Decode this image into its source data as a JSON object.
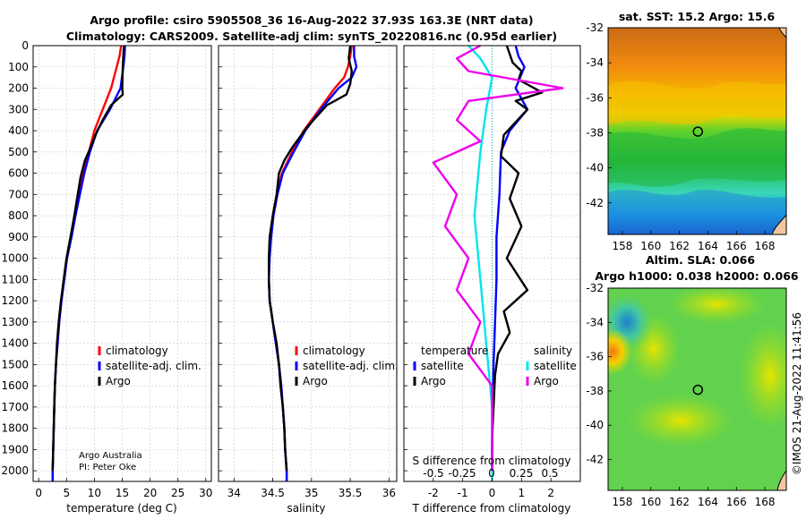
{
  "title_line1": "Argo profile: csiro 5905508_36 16-Aug-2022 37.93S 163.3E (NRT data)",
  "title_line2": "Climatology: CARS2009. Satellite-adj clim: synTS_20220816.nc (0.95d earlier)",
  "credit_line1": "Argo Australia",
  "credit_line2": "PI: Peter Oke",
  "copyright": "©IMOS 21-Aug-2022 11:41:56",
  "colors": {
    "climatology": "#ff0000",
    "satadj": "#0000ff",
    "argo": "#000000",
    "s_satellite": "#00e5ee",
    "s_argo": "#ee00ee"
  },
  "chart_data": [
    {
      "type": "line",
      "id": "temp",
      "xlabel": "temperature (deg C)",
      "xlim": [
        -1,
        31
      ],
      "ylim": [
        0,
        2050
      ],
      "xticks": [
        0,
        5,
        10,
        15,
        20,
        25,
        30
      ],
      "yticks": [
        0,
        100,
        200,
        300,
        400,
        500,
        600,
        700,
        800,
        900,
        1000,
        1100,
        1200,
        1300,
        1400,
        1500,
        1600,
        1700,
        1800,
        1900,
        2000
      ],
      "legend": [
        "climatology",
        "satellite-adj. clim.",
        "Argo"
      ],
      "series": [
        {
          "name": "climatology",
          "color": "#ff0000",
          "points": [
            [
              14.8,
              0
            ],
            [
              14.5,
              50
            ],
            [
              14.0,
              100
            ],
            [
              13.0,
              200
            ],
            [
              11.5,
              300
            ],
            [
              10.0,
              400
            ],
            [
              9.0,
              500
            ],
            [
              8.0,
              600
            ],
            [
              7.2,
              700
            ],
            [
              6.5,
              800
            ],
            [
              5.8,
              900
            ],
            [
              5.0,
              1000
            ],
            [
              4.5,
              1100
            ],
            [
              4.0,
              1200
            ],
            [
              3.6,
              1300
            ],
            [
              3.3,
              1400
            ],
            [
              3.1,
              1500
            ],
            [
              2.9,
              1600
            ],
            [
              2.8,
              1700
            ],
            [
              2.7,
              1800
            ],
            [
              2.6,
              1900
            ],
            [
              2.5,
              2000
            ],
            [
              2.5,
              2050
            ]
          ]
        },
        {
          "name": "satellite-adj. clim.",
          "color": "#0000ff",
          "points": [
            [
              15.5,
              0
            ],
            [
              15.4,
              50
            ],
            [
              15.2,
              100
            ],
            [
              14.7,
              200
            ],
            [
              12.8,
              300
            ],
            [
              10.5,
              400
            ],
            [
              9.2,
              500
            ],
            [
              8.2,
              600
            ],
            [
              7.4,
              700
            ],
            [
              6.6,
              800
            ],
            [
              5.9,
              900
            ],
            [
              5.1,
              1000
            ],
            [
              4.6,
              1100
            ],
            [
              4.1,
              1200
            ],
            [
              3.7,
              1300
            ],
            [
              3.4,
              1400
            ],
            [
              3.1,
              1500
            ],
            [
              2.9,
              1600
            ],
            [
              2.8,
              1700
            ],
            [
              2.7,
              1800
            ],
            [
              2.6,
              1900
            ],
            [
              2.5,
              2000
            ],
            [
              2.5,
              2050
            ]
          ]
        },
        {
          "name": "Argo",
          "color": "#000000",
          "points": [
            [
              15.3,
              0
            ],
            [
              15.2,
              50
            ],
            [
              15.1,
              100
            ],
            [
              15.0,
              200
            ],
            [
              15.1,
              230
            ],
            [
              13.0,
              280
            ],
            [
              11.5,
              350
            ],
            [
              10.2,
              420
            ],
            [
              9.3,
              480
            ],
            [
              8.3,
              540
            ],
            [
              7.5,
              620
            ],
            [
              7.0,
              700
            ],
            [
              6.4,
              800
            ],
            [
              5.7,
              900
            ],
            [
              5.0,
              1000
            ],
            [
              4.5,
              1100
            ],
            [
              4.0,
              1200
            ],
            [
              3.6,
              1300
            ],
            [
              3.3,
              1400
            ],
            [
              3.1,
              1500
            ],
            [
              2.9,
              1600
            ],
            [
              2.8,
              1700
            ],
            [
              2.7,
              1800
            ],
            [
              2.6,
              1900
            ],
            [
              2.5,
              2000
            ]
          ]
        }
      ]
    },
    {
      "type": "line",
      "id": "salt",
      "xlabel": "salinity",
      "xlim": [
        33.8,
        36.1
      ],
      "ylim": [
        0,
        2050
      ],
      "xticks": [
        34,
        34.5,
        35,
        35.5,
        36
      ],
      "yticks": [
        0,
        100,
        200,
        300,
        400,
        500,
        600,
        700,
        800,
        900,
        1000,
        1100,
        1200,
        1300,
        1400,
        1500,
        1600,
        1700,
        1800,
        1900,
        2000
      ],
      "legend": [
        "climatology",
        "satellite-adj. clim.",
        "Argo"
      ],
      "series": [
        {
          "name": "climatology",
          "color": "#ff0000",
          "points": [
            [
              35.52,
              0
            ],
            [
              35.5,
              50
            ],
            [
              35.47,
              100
            ],
            [
              35.42,
              150
            ],
            [
              35.3,
              200
            ],
            [
              35.1,
              300
            ],
            [
              34.9,
              400
            ],
            [
              34.75,
              500
            ],
            [
              34.62,
              600
            ],
            [
              34.55,
              700
            ],
            [
              34.5,
              800
            ],
            [
              34.47,
              900
            ],
            [
              34.45,
              1000
            ],
            [
              34.45,
              1100
            ],
            [
              34.46,
              1200
            ],
            [
              34.5,
              1300
            ],
            [
              34.54,
              1400
            ],
            [
              34.58,
              1500
            ],
            [
              34.61,
              1600
            ],
            [
              34.63,
              1700
            ],
            [
              34.65,
              1800
            ],
            [
              34.66,
              1900
            ],
            [
              34.68,
              2000
            ],
            [
              34.68,
              2050
            ]
          ]
        },
        {
          "name": "satellite-adj. clim.",
          "color": "#0000ff",
          "points": [
            [
              35.55,
              0
            ],
            [
              35.55,
              50
            ],
            [
              35.58,
              100
            ],
            [
              35.52,
              150
            ],
            [
              35.35,
              200
            ],
            [
              35.12,
              300
            ],
            [
              34.92,
              400
            ],
            [
              34.77,
              500
            ],
            [
              34.63,
              600
            ],
            [
              34.56,
              700
            ],
            [
              34.51,
              800
            ],
            [
              34.48,
              900
            ],
            [
              34.46,
              1000
            ],
            [
              34.45,
              1100
            ],
            [
              34.46,
              1200
            ],
            [
              34.5,
              1300
            ],
            [
              34.54,
              1400
            ],
            [
              34.58,
              1500
            ],
            [
              34.61,
              1600
            ],
            [
              34.63,
              1700
            ],
            [
              34.65,
              1800
            ],
            [
              34.66,
              1900
            ],
            [
              34.68,
              2000
            ],
            [
              34.68,
              2050
            ]
          ]
        },
        {
          "name": "Argo",
          "color": "#000000",
          "points": [
            [
              35.5,
              0
            ],
            [
              35.48,
              60
            ],
            [
              35.52,
              120
            ],
            [
              35.5,
              180
            ],
            [
              35.45,
              230
            ],
            [
              35.2,
              280
            ],
            [
              34.95,
              380
            ],
            [
              34.75,
              480
            ],
            [
              34.65,
              540
            ],
            [
              34.58,
              600
            ],
            [
              34.55,
              700
            ],
            [
              34.5,
              800
            ],
            [
              34.46,
              900
            ],
            [
              34.45,
              1000
            ],
            [
              34.45,
              1100
            ],
            [
              34.46,
              1200
            ],
            [
              34.5,
              1300
            ],
            [
              34.55,
              1400
            ],
            [
              34.58,
              1500
            ],
            [
              34.6,
              1600
            ],
            [
              34.63,
              1700
            ],
            [
              34.65,
              1800
            ],
            [
              34.66,
              1900
            ],
            [
              34.68,
              2000
            ]
          ]
        }
      ]
    },
    {
      "type": "line",
      "id": "diff",
      "xlabel": "T difference from climatology",
      "s_label": "S difference from climatology",
      "xlim": [
        -3,
        3
      ],
      "ylim": [
        0,
        2050
      ],
      "xticks": [
        -2,
        -1,
        0,
        1,
        2
      ],
      "s_ticks": [
        "-0.5",
        "-0.25",
        "0",
        "0.25",
        "0.5"
      ],
      "yticks": [
        0,
        100,
        200,
        300,
        400,
        500,
        600,
        700,
        800,
        900,
        1000,
        1100,
        1200,
        1300,
        1400,
        1500,
        1600,
        1700,
        1800,
        1900,
        2000
      ],
      "legend_temperature_title": "temperature",
      "legend_salinity_title": "salinity",
      "legend_entries": [
        "satellite",
        "Argo"
      ],
      "series": [
        {
          "name": "T satellite",
          "color": "#0000ff",
          "points": [
            [
              0.8,
              0
            ],
            [
              0.9,
              50
            ],
            [
              1.1,
              100
            ],
            [
              0.8,
              200
            ],
            [
              1.2,
              300
            ],
            [
              0.6,
              400
            ],
            [
              0.3,
              500
            ],
            [
              0.25,
              700
            ],
            [
              0.15,
              900
            ],
            [
              0.15,
              1100
            ],
            [
              0.1,
              1300
            ],
            [
              0.05,
              1500
            ],
            [
              0.02,
              1700
            ],
            [
              0.0,
              1900
            ],
            [
              0.0,
              2000
            ]
          ]
        },
        {
          "name": "T Argo",
          "color": "#000000",
          "points": [
            [
              0.5,
              0
            ],
            [
              0.7,
              80
            ],
            [
              1.0,
              120
            ],
            [
              0.9,
              160
            ],
            [
              1.7,
              220
            ],
            [
              0.8,
              260
            ],
            [
              1.2,
              300
            ],
            [
              0.4,
              420
            ],
            [
              0.3,
              520
            ],
            [
              0.9,
              600
            ],
            [
              0.6,
              720
            ],
            [
              1.0,
              850
            ],
            [
              0.5,
              1000
            ],
            [
              1.2,
              1150
            ],
            [
              0.4,
              1250
            ],
            [
              0.6,
              1350
            ],
            [
              0.2,
              1450
            ],
            [
              0.1,
              1550
            ],
            [
              0.05,
              1700
            ],
            [
              0.0,
              1850
            ],
            [
              0.0,
              2000
            ]
          ]
        },
        {
          "name": "S satellite",
          "color": "#00e5ee",
          "points": [
            [
              -0.2,
              0
            ],
            [
              -0.1,
              60
            ],
            [
              0.0,
              150
            ],
            [
              -0.05,
              300
            ],
            [
              -0.1,
              500
            ],
            [
              -0.15,
              800
            ],
            [
              -0.1,
              1100
            ],
            [
              -0.05,
              1400
            ],
            [
              0.0,
              1700
            ],
            [
              0.0,
              2050
            ]
          ]
        },
        {
          "name": "S Argo",
          "color": "#ee00ee",
          "points": [
            [
              -0.1,
              0
            ],
            [
              -0.3,
              60
            ],
            [
              -0.2,
              120
            ],
            [
              0.6,
              200
            ],
            [
              -0.2,
              260
            ],
            [
              -0.3,
              350
            ],
            [
              -0.1,
              450
            ],
            [
              -0.5,
              550
            ],
            [
              -0.3,
              700
            ],
            [
              -0.4,
              850
            ],
            [
              -0.2,
              1000
            ],
            [
              -0.3,
              1150
            ],
            [
              -0.1,
              1300
            ],
            [
              -0.2,
              1450
            ],
            [
              0.0,
              1600
            ],
            [
              0.0,
              2000
            ]
          ]
        }
      ]
    },
    {
      "type": "heatmap",
      "id": "sst",
      "title": "sat. SST: 15.2 Argo: 15.6",
      "xlim": [
        157,
        169.5
      ],
      "ylim": [
        -43.8,
        -32
      ],
      "xticks": [
        158,
        160,
        162,
        164,
        166,
        168
      ],
      "yticks": [
        -32,
        -34,
        -36,
        -38,
        -40,
        -42
      ],
      "marker": [
        163.3,
        -37.93
      ]
    },
    {
      "type": "heatmap",
      "id": "sla",
      "title_line1": "Altim. SLA: 0.066",
      "title_line2": "Argo h1000: 0.038 h2000: 0.066",
      "xlim": [
        157,
        169.5
      ],
      "ylim": [
        -43.8,
        -32
      ],
      "xticks": [
        158,
        160,
        162,
        164,
        166,
        168
      ],
      "yticks": [
        -32,
        -34,
        -36,
        -38,
        -40,
        -42
      ],
      "marker": [
        163.3,
        -37.93
      ]
    }
  ]
}
